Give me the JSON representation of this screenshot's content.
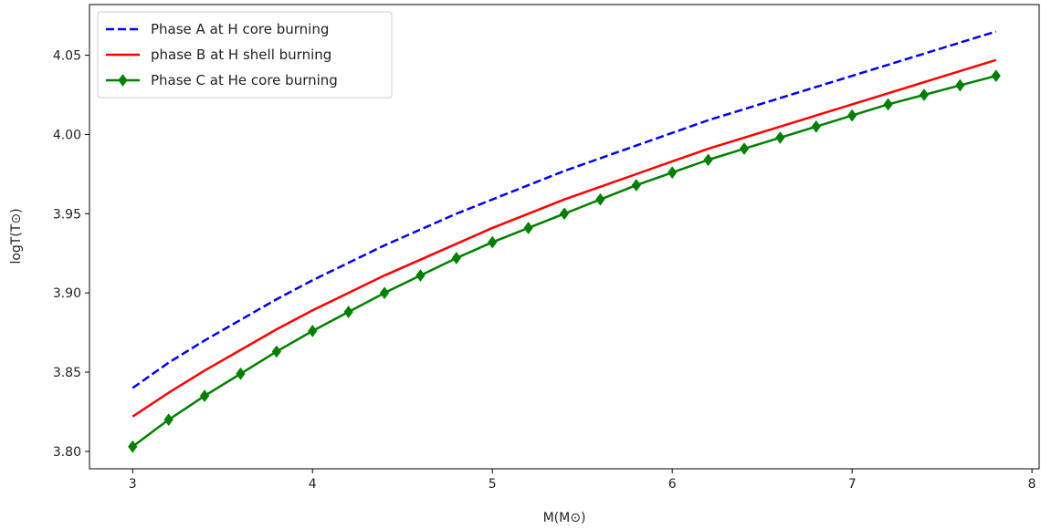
{
  "chart_data": {
    "type": "line",
    "title": "",
    "xlabel": "M(M⊙)",
    "ylabel": "logT(T⊙)",
    "xlim": [
      2.76,
      8.04
    ],
    "ylim": [
      3.789,
      4.082
    ],
    "xticks": [
      3,
      4,
      5,
      6,
      7,
      8
    ],
    "yticks": [
      3.8,
      3.85,
      3.9,
      3.95,
      4.0,
      4.05
    ],
    "ytick_labels": [
      "3.80",
      "3.85",
      "3.90",
      "3.95",
      "4.00",
      "4.05"
    ],
    "grid": false,
    "legend_position": "top-left",
    "x": [
      3.0,
      3.2,
      3.4,
      3.6,
      3.8,
      4.0,
      4.2,
      4.4,
      4.6,
      4.8,
      5.0,
      5.2,
      5.4,
      5.6,
      5.8,
      6.0,
      6.2,
      6.4,
      6.6,
      6.8,
      7.0,
      7.2,
      7.4,
      7.6,
      7.8
    ],
    "series": [
      {
        "name": "Phase A at H core burning",
        "color": "#0000ff",
        "style": "dashed",
        "marker": "none",
        "values": [
          3.84,
          3.856,
          3.87,
          3.883,
          3.896,
          3.908,
          3.919,
          3.93,
          3.94,
          3.95,
          3.959,
          3.968,
          3.977,
          3.985,
          3.993,
          4.001,
          4.009,
          4.016,
          4.023,
          4.03,
          4.037,
          4.044,
          4.051,
          4.058,
          4.065
        ]
      },
      {
        "name": "phase B at H shell burning",
        "color": "#ff0000",
        "style": "solid",
        "marker": "none",
        "values": [
          3.822,
          3.837,
          3.851,
          3.864,
          3.877,
          3.889,
          3.9,
          3.911,
          3.921,
          3.931,
          3.941,
          3.95,
          3.959,
          3.967,
          3.975,
          3.983,
          3.991,
          3.998,
          4.005,
          4.012,
          4.019,
          4.026,
          4.033,
          4.04,
          4.047
        ]
      },
      {
        "name": "Phase C at He core burning",
        "color": "#008000",
        "style": "solid",
        "marker": "diamond",
        "values": [
          3.803,
          3.82,
          3.835,
          3.849,
          3.863,
          3.876,
          3.888,
          3.9,
          3.911,
          3.922,
          3.932,
          3.941,
          3.95,
          3.959,
          3.968,
          3.976,
          3.984,
          3.991,
          3.998,
          4.005,
          4.012,
          4.019,
          4.025,
          4.031,
          4.037
        ]
      }
    ]
  }
}
